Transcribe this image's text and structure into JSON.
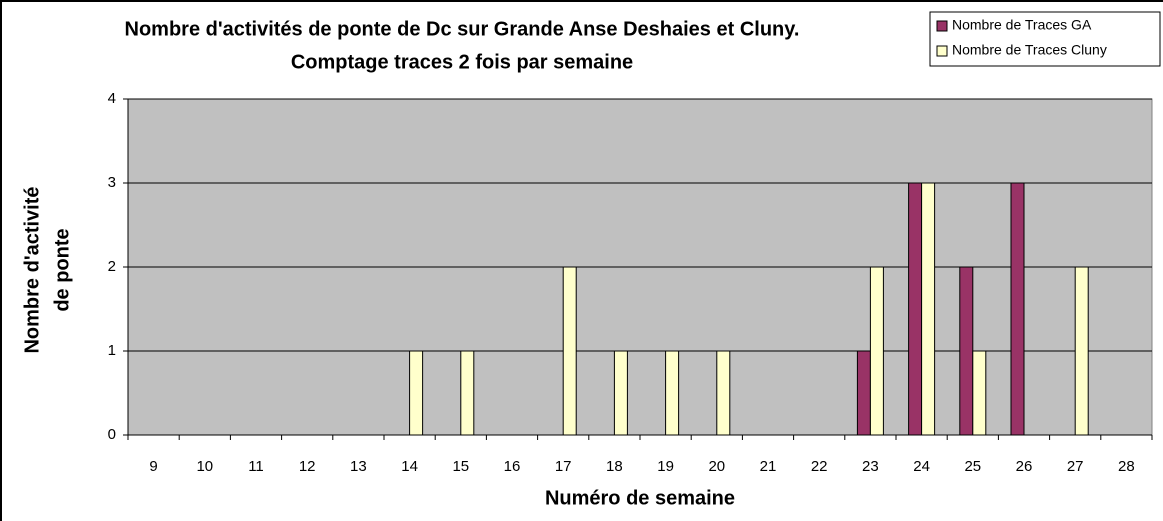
{
  "chart_data": {
    "type": "bar",
    "title": "Nombre d'activités de ponte de Dc sur Grande Anse Deshaies et Cluny.",
    "subtitle": "Comptage traces 2 fois par semaine",
    "xlabel": "Numéro de semaine",
    "ylabel": [
      "Nombre d'activité",
      "de ponte"
    ],
    "categories": [
      9,
      10,
      11,
      12,
      13,
      14,
      15,
      16,
      17,
      18,
      19,
      20,
      21,
      22,
      23,
      24,
      25,
      26,
      27,
      28
    ],
    "series": [
      {
        "name": "Nombre de Traces GA",
        "color": "#993366",
        "values": [
          0,
          0,
          0,
          0,
          0,
          0,
          0,
          0,
          0,
          0,
          0,
          0,
          0,
          0,
          1,
          3,
          2,
          3,
          0,
          0
        ]
      },
      {
        "name": "Nombre de Traces Cluny",
        "color": "#ffffcc",
        "values": [
          0,
          0,
          0,
          0,
          0,
          1,
          1,
          0,
          2,
          1,
          1,
          1,
          0,
          0,
          2,
          3,
          1,
          0,
          2,
          0
        ]
      }
    ],
    "ylim": [
      0,
      4
    ],
    "yticks": [
      0,
      1,
      2,
      3,
      4
    ],
    "grid": true,
    "plot_background": "#c0c0c0",
    "legend": "top-right"
  }
}
